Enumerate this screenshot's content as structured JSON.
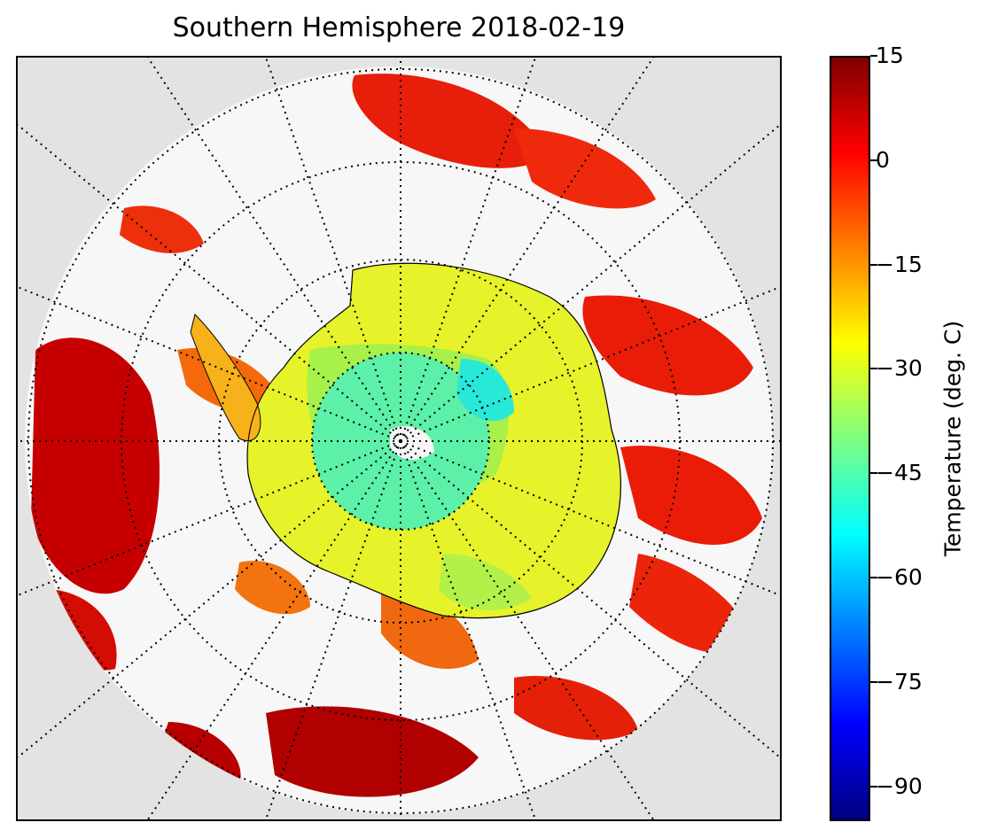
{
  "title": "Southern Hemisphere 2018-02-19",
  "colorbar": {
    "label": "Temperature (deg. C)",
    "min": -95,
    "max": 15,
    "ticks": [
      "15",
      "0",
      "−15",
      "−30",
      "−45",
      "−60",
      "−75",
      "−90"
    ],
    "tick_values": [
      15,
      0,
      -15,
      -30,
      -45,
      -60,
      -75,
      -90
    ],
    "colormap": "jet"
  },
  "map": {
    "projection": "south-polar-stereographic",
    "background_color": "#e3e3e3",
    "graticule_style": "dotted",
    "meridian_spacing_deg": 10,
    "continent": "Antarctica"
  }
}
